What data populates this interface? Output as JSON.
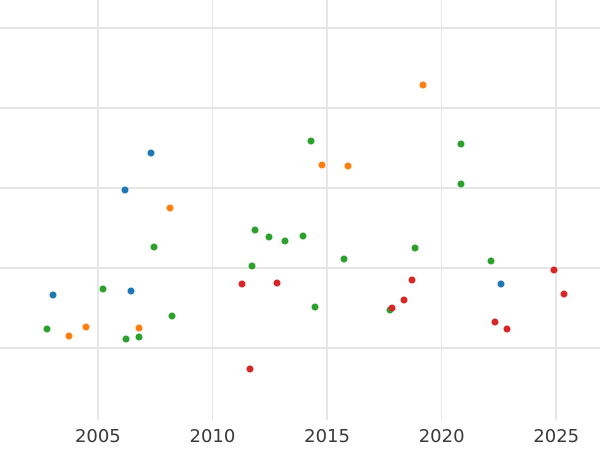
{
  "figure": {
    "background_color": "#ffffff",
    "grid_color": "#e6e6e6",
    "tick_label_color": "#3a3a3a"
  },
  "chart_data": {
    "type": "scatter",
    "title": "",
    "xlabel": "",
    "ylabel": "",
    "grid": true,
    "legend": null,
    "x_axis": {
      "range": [
        2000.73,
        2026.91
      ],
      "ticks": [
        2005,
        2010,
        2015,
        2020,
        2025
      ],
      "tick_labels": [
        "2005",
        "2010",
        "2015",
        "2020",
        "2025"
      ]
    },
    "y_axis": {
      "range": [
        -0.9,
        4.35
      ],
      "gridline_values": [
        0,
        1,
        2,
        3,
        4
      ],
      "tick_labels_visible": false,
      "units": "gridline-intervals (y tick labels cropped out of view)"
    },
    "series": [
      {
        "name": "blue-series",
        "color": "#1f77b4",
        "points": [
          [
            2003.04,
            0.66
          ],
          [
            2006.17,
            1.98
          ],
          [
            2006.43,
            0.71
          ],
          [
            2007.3,
            2.44
          ],
          [
            2022.61,
            0.8
          ]
        ]
      },
      {
        "name": "orange-series",
        "color": "#ff7f0e",
        "points": [
          [
            2003.74,
            0.15
          ],
          [
            2004.48,
            0.26
          ],
          [
            2006.78,
            0.25
          ],
          [
            2008.13,
            1.75
          ],
          [
            2014.78,
            2.29
          ],
          [
            2015.91,
            2.28
          ],
          [
            2019.17,
            3.29
          ]
        ]
      },
      {
        "name": "green-series",
        "color": "#2ca02c",
        "points": [
          [
            2002.78,
            0.24
          ],
          [
            2005.22,
            0.74
          ],
          [
            2006.22,
            0.11
          ],
          [
            2006.78,
            0.14
          ],
          [
            2007.43,
            1.26
          ],
          [
            2008.22,
            0.4
          ],
          [
            2011.74,
            1.03
          ],
          [
            2011.87,
            1.48
          ],
          [
            2012.48,
            1.39
          ],
          [
            2013.17,
            1.34
          ],
          [
            2013.96,
            1.4
          ],
          [
            2014.3,
            2.59
          ],
          [
            2014.48,
            0.51
          ],
          [
            2015.74,
            1.11
          ],
          [
            2017.74,
            0.48
          ],
          [
            2018.83,
            1.25
          ],
          [
            2020.83,
            2.55
          ],
          [
            2020.83,
            2.05
          ],
          [
            2022.17,
            1.09
          ]
        ]
      },
      {
        "name": "red-series",
        "color": "#d62728",
        "points": [
          [
            2011.3,
            0.8
          ],
          [
            2011.65,
            -0.26
          ],
          [
            2012.83,
            0.81
          ],
          [
            2017.83,
            0.5
          ],
          [
            2018.35,
            0.6
          ],
          [
            2018.7,
            0.85
          ],
          [
            2022.35,
            0.33
          ],
          [
            2022.87,
            0.24
          ],
          [
            2024.91,
            0.98
          ],
          [
            2025.35,
            0.68
          ]
        ]
      }
    ]
  }
}
